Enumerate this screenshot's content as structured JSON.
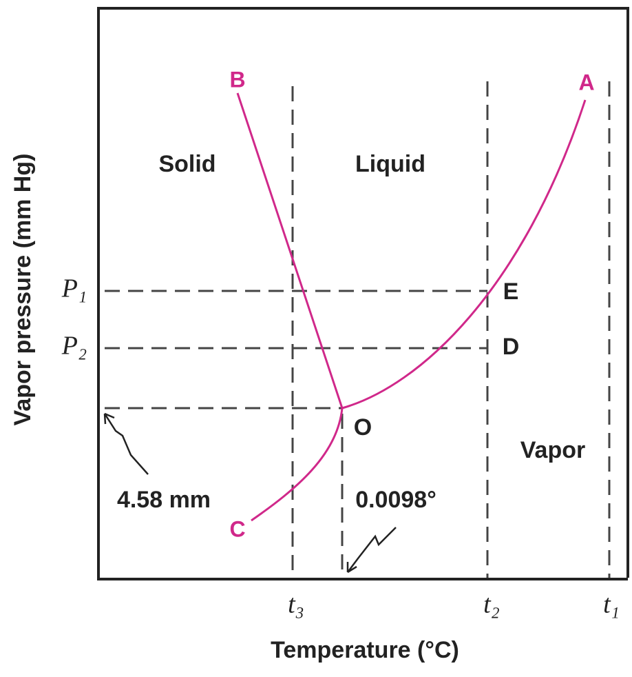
{
  "title_axis_y": "Vapor pressure (mm Hg)",
  "title_axis_x": "Temperature (°C)",
  "regions": {
    "solid": "Solid",
    "liquid": "Liquid",
    "vapor": "Vapor"
  },
  "points": {
    "a": "A",
    "b": "B",
    "c": "C",
    "d": "D",
    "e": "E",
    "o": "O"
  },
  "pressure_labels": {
    "p1": "P₁",
    "p2": "P₂"
  },
  "temperature_labels": {
    "t3": "t₃",
    "t2": "t₂",
    "t1": "t₁"
  },
  "annotations": {
    "triple_pressure": "4.58 mm",
    "triple_temperature": "0.0098°"
  }
}
